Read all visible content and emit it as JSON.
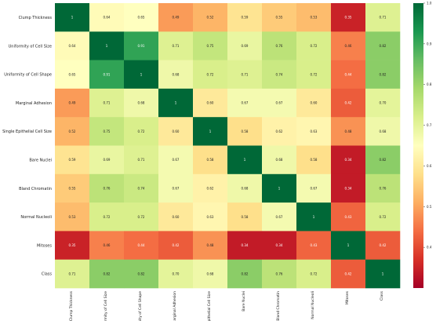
{
  "chart_data": {
    "type": "heatmap",
    "title": "",
    "rows": [
      "Clump Thickness",
      "Uniformity of Cell Size",
      "Uniformity of Cell Shape",
      "Marginal Adhesion",
      "Single Epithelial Cell Size",
      "Bare Nuclei",
      "Bland Chromatin",
      "Normal Nucleoli",
      "Mitoses",
      "Class"
    ],
    "columns": [
      "Clump Thickness",
      "Uniformity of Cell Size",
      "Uniformity of Cell Shape",
      "Marginal Adhesion",
      "Single Epithelial Cell Size",
      "Bare Nuclei",
      "Bland Chromatin",
      "Normal Nucleoli",
      "Mitoses",
      "Class"
    ],
    "values": [
      [
        1,
        0.64,
        0.65,
        0.49,
        0.52,
        0.59,
        0.55,
        0.53,
        0.35,
        0.71
      ],
      [
        0.64,
        1,
        0.91,
        0.71,
        0.75,
        0.69,
        0.76,
        0.72,
        0.46,
        0.82
      ],
      [
        0.65,
        0.91,
        1,
        0.68,
        0.72,
        0.71,
        0.74,
        0.72,
        0.44,
        0.82
      ],
      [
        0.49,
        0.71,
        0.68,
        1,
        0.6,
        0.67,
        0.67,
        0.6,
        0.42,
        0.7
      ],
      [
        0.52,
        0.75,
        0.72,
        0.6,
        1,
        0.58,
        0.62,
        0.63,
        0.48,
        0.68
      ],
      [
        0.59,
        0.69,
        0.71,
        0.67,
        0.58,
        1,
        0.68,
        0.58,
        0.34,
        0.82
      ],
      [
        0.55,
        0.76,
        0.74,
        0.67,
        0.62,
        0.68,
        1,
        0.67,
        0.34,
        0.76
      ],
      [
        0.53,
        0.72,
        0.72,
        0.6,
        0.63,
        0.58,
        0.67,
        1,
        0.43,
        0.72
      ],
      [
        0.35,
        0.46,
        0.44,
        0.42,
        0.48,
        0.34,
        0.34,
        0.43,
        1,
        0.42
      ],
      [
        0.71,
        0.82,
        0.82,
        0.7,
        0.68,
        0.82,
        0.76,
        0.72,
        0.42,
        1
      ]
    ],
    "value_range": [
      0.3,
      1.0
    ],
    "colorbar_ticks": [
      "1.0",
      "0.9",
      "0.8",
      "0.7",
      "0.6",
      "0.5",
      "0.4"
    ],
    "colormap": "RdYlGn",
    "colormap_stops": [
      "#a50026",
      "#d73027",
      "#f46d43",
      "#fdae61",
      "#fee08b",
      "#ffffbf",
      "#d9ef8b",
      "#a6d96a",
      "#66bd63",
      "#1a9850",
      "#006837"
    ],
    "annotation_colors": {
      "light": "#ffffff",
      "dark": "#222222"
    }
  }
}
